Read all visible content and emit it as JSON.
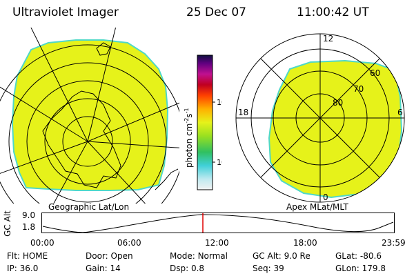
{
  "header": {
    "title": "Ultraviolet Imager",
    "date": "25 Dec 07",
    "time": "11:00:42 UT"
  },
  "left_panel": {
    "caption": "Geographic Lat/Lon"
  },
  "right_panel": {
    "caption": "Apex MLat/MLT",
    "mlt_labels": {
      "top": "12",
      "left": "18",
      "right": "6",
      "bottom": "0"
    },
    "lat_labels": [
      "60",
      "70",
      "80"
    ]
  },
  "colorbar": {
    "unit_label": "photon cm",
    "exp1": "-2",
    "unit_mid": "s",
    "exp2": "-1",
    "ticks": [
      "100",
      "10"
    ]
  },
  "altitude_plot": {
    "axis_label": "GC Alt",
    "y_ticks": [
      "9.0",
      "1.8"
    ],
    "x_ticks": [
      "00:00",
      "06:00",
      "12:00",
      "18:00",
      "23:59"
    ],
    "marker_time": "11:00:42"
  },
  "info": {
    "row1": [
      {
        "label": "Flt:",
        "value": "HOME"
      },
      {
        "label": "Door:",
        "value": "Open"
      },
      {
        "label": "Mode:",
        "value": "Normal"
      },
      {
        "label": "GC Alt:",
        "value": "9.0 Re"
      },
      {
        "label": "GLat:",
        "value": "-80.6"
      }
    ],
    "row2": [
      {
        "label": "IP:",
        "value": "36.0"
      },
      {
        "label": "Gain:",
        "value": "14"
      },
      {
        "label": "Dsp:",
        "value": "0.8"
      },
      {
        "label": "Seq:",
        "value": "39"
      },
      {
        "label": "GLon:",
        "value": "179.8"
      }
    ]
  },
  "colors": {
    "emission": "#e6f21a",
    "edge": "#4fd8c8",
    "marker": "#e00000"
  }
}
